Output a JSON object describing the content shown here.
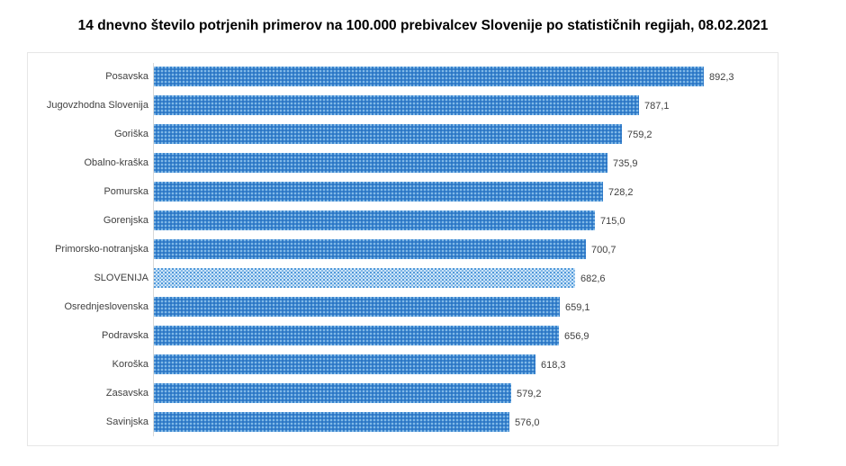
{
  "title": "14 dnevno število potrjenih primerov na 100.000 prebivalcev Slovenije po statističnih regijah, 08.02.2021",
  "chart_data": {
    "type": "bar",
    "orientation": "horizontal",
    "title": "14 dnevno število potrjenih primerov na 100.000 prebivalcev Slovenije po statističnih regijah, 08.02.2021",
    "xlabel": "",
    "ylabel": "",
    "grid": false,
    "legend": null,
    "xlim": [
      0,
      1000
    ],
    "categories": [
      "Posavska",
      "Jugovzhodna Slovenija",
      "Goriška",
      "Obalno-kraška",
      "Pomurska",
      "Gorenjska",
      "Primorsko-notranjska",
      "SLOVENIJA",
      "Osrednjeslovenska",
      "Podravska",
      "Koroška",
      "Zasavska",
      "Savinjska"
    ],
    "values": [
      892.3,
      787.1,
      759.2,
      735.9,
      728.2,
      715.0,
      700.7,
      682.6,
      659.1,
      656.9,
      618.3,
      579.2,
      576.0
    ],
    "value_labels": [
      "892,3",
      "787,1",
      "759,2",
      "735,9",
      "728,2",
      "715,0",
      "700,7",
      "682,6",
      "659,1",
      "656,9",
      "618,3",
      "579,2",
      "576,0"
    ],
    "highlight_category": "SLOVENIJA",
    "colors": {
      "bar": "#3b86cf",
      "highlight_bar": "#7fb6e6",
      "label_text": "#404040"
    }
  },
  "rows": [
    {
      "label": "Posavska",
      "value": 892.3,
      "text": "892,3",
      "highlight": false
    },
    {
      "label": "Jugovzhodna Slovenija",
      "value": 787.1,
      "text": "787,1",
      "highlight": false
    },
    {
      "label": "Goriška",
      "value": 759.2,
      "text": "759,2",
      "highlight": false
    },
    {
      "label": "Obalno-kraška",
      "value": 735.9,
      "text": "735,9",
      "highlight": false
    },
    {
      "label": "Pomurska",
      "value": 728.2,
      "text": "728,2",
      "highlight": false
    },
    {
      "label": "Gorenjska",
      "value": 715.0,
      "text": "715,0",
      "highlight": false
    },
    {
      "label": "Primorsko-notranjska",
      "value": 700.7,
      "text": "700,7",
      "highlight": false
    },
    {
      "label": "SLOVENIJA",
      "value": 682.6,
      "text": "682,6",
      "highlight": true
    },
    {
      "label": "Osrednjeslovenska",
      "value": 659.1,
      "text": "659,1",
      "highlight": false
    },
    {
      "label": "Podravska",
      "value": 656.9,
      "text": "656,9",
      "highlight": false
    },
    {
      "label": "Koroška",
      "value": 618.3,
      "text": "618,3",
      "highlight": false
    },
    {
      "label": "Zasavska",
      "value": 579.2,
      "text": "579,2",
      "highlight": false
    },
    {
      "label": "Savinjska",
      "value": 576.0,
      "text": "576,0",
      "highlight": false
    }
  ]
}
